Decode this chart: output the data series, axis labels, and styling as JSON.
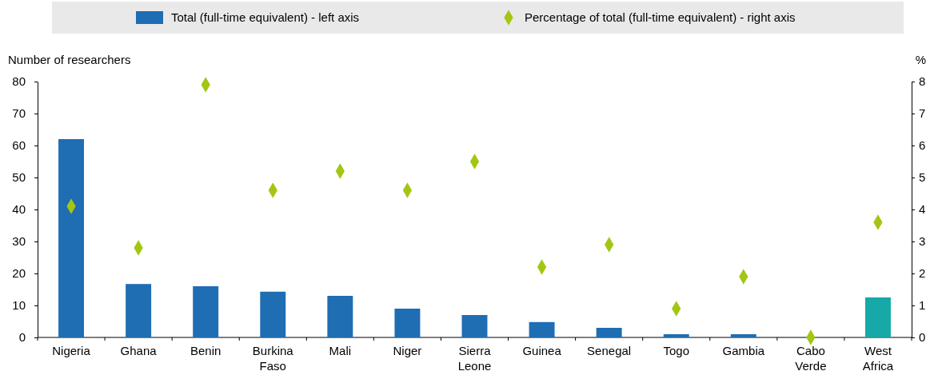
{
  "chart_data": {
    "type": "bar",
    "categories": [
      "Nigeria",
      "Ghana",
      "Benin",
      "Burkina Faso",
      "Mali",
      "Niger",
      "Sierra Leone",
      "Guinea",
      "Senegal",
      "Togo",
      "Gambia",
      "Cabo Verde",
      "West Africa"
    ],
    "series": [
      {
        "name": "Total (full-time equivalent) - left axis",
        "color": "#1f6db3",
        "colors": [
          "#1f6db3",
          "#1f6db3",
          "#1f6db3",
          "#1f6db3",
          "#1f6db3",
          "#1f6db3",
          "#1f6db3",
          "#1f6db3",
          "#1f6db3",
          "#1f6db3",
          "#1f6db3",
          "#1f6db3",
          "#17a8a8"
        ],
        "values": [
          62,
          16.7,
          16,
          14.3,
          13,
          9,
          7,
          4.8,
          3,
          1,
          1,
          0,
          12.5
        ]
      },
      {
        "name": "Percentage of total (full-time equivalent) - right axis",
        "type": "scatter",
        "axis": "y2",
        "color": "#a3c614",
        "values": [
          4.1,
          2.8,
          7.9,
          4.6,
          5.2,
          4.6,
          5.5,
          2.2,
          2.9,
          0.9,
          1.9,
          0,
          3.6
        ]
      }
    ],
    "ylabel": "Number of researchers",
    "y2label": "%",
    "ylim": [
      0,
      80
    ],
    "yticks": [
      0,
      10,
      20,
      30,
      40,
      50,
      60,
      70,
      80
    ],
    "y2lim": [
      0,
      8
    ],
    "y2ticks": [
      0,
      1,
      2,
      3,
      4,
      5,
      6,
      7,
      8
    ],
    "marker": "diamond",
    "legend": "top",
    "grid": false
  }
}
